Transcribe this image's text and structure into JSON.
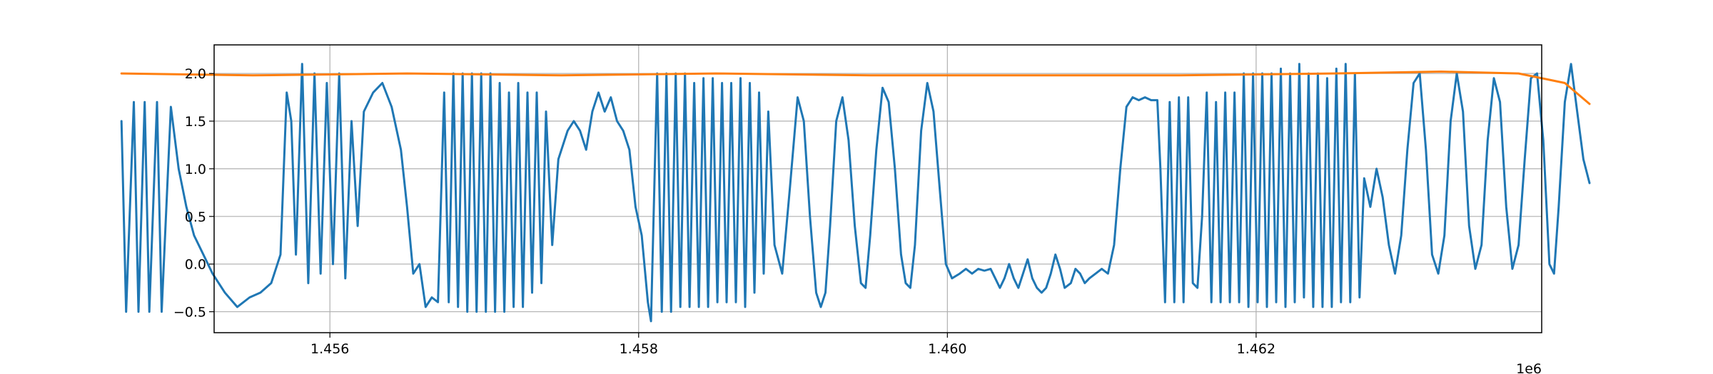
{
  "chart_data": {
    "type": "line",
    "title": "",
    "xlabel": "",
    "ylabel": "",
    "x_offset_label": "1e6",
    "xlim": [
      1.45525,
      1.46385
    ],
    "ylim": [
      -0.72,
      2.3
    ],
    "x_ticks": [
      1.456,
      1.458,
      1.46,
      1.462
    ],
    "x_tick_labels": [
      "1.456",
      "1.458",
      "1.460",
      "1.462"
    ],
    "y_ticks": [
      -0.5,
      0.0,
      0.5,
      1.0,
      1.5,
      2.0
    ],
    "y_tick_labels": [
      "−0.5",
      "0.0",
      "0.5",
      "1.0",
      "1.5",
      "2.0"
    ],
    "grid": true,
    "series": [
      {
        "color": "#1f77b4",
        "points": [
          [
            1.45465,
            1.5
          ],
          [
            1.45468,
            -0.5
          ],
          [
            1.45473,
            1.7
          ],
          [
            1.45476,
            -0.5
          ],
          [
            1.4548,
            1.7
          ],
          [
            1.45483,
            -0.5
          ],
          [
            1.45488,
            1.7
          ],
          [
            1.45491,
            -0.5
          ],
          [
            1.45497,
            1.65
          ],
          [
            1.45502,
            1.0
          ],
          [
            1.45507,
            0.6
          ],
          [
            1.45512,
            0.3
          ],
          [
            1.45518,
            0.1
          ],
          [
            1.45524,
            -0.1
          ],
          [
            1.45532,
            -0.3
          ],
          [
            1.4554,
            -0.45
          ],
          [
            1.45548,
            -0.35
          ],
          [
            1.45555,
            -0.3
          ],
          [
            1.45562,
            -0.2
          ],
          [
            1.45568,
            0.1
          ],
          [
            1.45572,
            1.8
          ],
          [
            1.45575,
            1.5
          ],
          [
            1.45578,
            0.1
          ],
          [
            1.45582,
            2.1
          ],
          [
            1.45586,
            -0.2
          ],
          [
            1.4559,
            2.0
          ],
          [
            1.45594,
            -0.1
          ],
          [
            1.45598,
            1.9
          ],
          [
            1.45602,
            0.0
          ],
          [
            1.45606,
            2.0
          ],
          [
            1.4561,
            -0.15
          ],
          [
            1.45614,
            1.5
          ],
          [
            1.45618,
            0.4
          ],
          [
            1.45622,
            1.6
          ],
          [
            1.45628,
            1.8
          ],
          [
            1.45634,
            1.9
          ],
          [
            1.4564,
            1.65
          ],
          [
            1.45646,
            1.2
          ],
          [
            1.4565,
            0.6
          ],
          [
            1.45654,
            -0.1
          ],
          [
            1.45658,
            0.0
          ],
          [
            1.45662,
            -0.45
          ],
          [
            1.45666,
            -0.35
          ],
          [
            1.4567,
            -0.4
          ],
          [
            1.45674,
            1.8
          ],
          [
            1.45677,
            -0.4
          ],
          [
            1.4568,
            2.0
          ],
          [
            1.45683,
            -0.45
          ],
          [
            1.45686,
            2.0
          ],
          [
            1.45689,
            -0.5
          ],
          [
            1.45692,
            2.0
          ],
          [
            1.45695,
            -0.5
          ],
          [
            1.45698,
            2.0
          ],
          [
            1.45701,
            -0.5
          ],
          [
            1.45704,
            2.0
          ],
          [
            1.45707,
            -0.5
          ],
          [
            1.4571,
            1.9
          ],
          [
            1.45713,
            -0.5
          ],
          [
            1.45716,
            1.8
          ],
          [
            1.45719,
            -0.45
          ],
          [
            1.45722,
            1.9
          ],
          [
            1.45725,
            -0.45
          ],
          [
            1.45728,
            1.8
          ],
          [
            1.45731,
            -0.3
          ],
          [
            1.45734,
            1.8
          ],
          [
            1.45737,
            -0.2
          ],
          [
            1.4574,
            1.6
          ],
          [
            1.45744,
            0.2
          ],
          [
            1.45748,
            1.1
          ],
          [
            1.45754,
            1.4
          ],
          [
            1.45758,
            1.5
          ],
          [
            1.45762,
            1.4
          ],
          [
            1.45766,
            1.2
          ],
          [
            1.4577,
            1.6
          ],
          [
            1.45774,
            1.8
          ],
          [
            1.45778,
            1.6
          ],
          [
            1.45782,
            1.75
          ],
          [
            1.45786,
            1.5
          ],
          [
            1.4579,
            1.4
          ],
          [
            1.45794,
            1.2
          ],
          [
            1.45798,
            0.6
          ],
          [
            1.45802,
            0.3
          ],
          [
            1.45806,
            -0.4
          ],
          [
            1.45808,
            -0.6
          ],
          [
            1.45812,
            2.0
          ],
          [
            1.45815,
            -0.5
          ],
          [
            1.45818,
            2.0
          ],
          [
            1.45821,
            -0.5
          ],
          [
            1.45824,
            2.0
          ],
          [
            1.45827,
            -0.45
          ],
          [
            1.4583,
            2.0
          ],
          [
            1.45833,
            -0.45
          ],
          [
            1.45836,
            1.9
          ],
          [
            1.45839,
            -0.45
          ],
          [
            1.45842,
            1.95
          ],
          [
            1.45845,
            -0.45
          ],
          [
            1.45848,
            1.95
          ],
          [
            1.45851,
            -0.4
          ],
          [
            1.45854,
            1.9
          ],
          [
            1.45857,
            -0.4
          ],
          [
            1.4586,
            1.9
          ],
          [
            1.45863,
            -0.4
          ],
          [
            1.45866,
            1.95
          ],
          [
            1.45869,
            -0.45
          ],
          [
            1.45872,
            1.9
          ],
          [
            1.45875,
            -0.3
          ],
          [
            1.45878,
            1.8
          ],
          [
            1.45881,
            -0.1
          ],
          [
            1.45884,
            1.6
          ],
          [
            1.45888,
            0.2
          ],
          [
            1.45893,
            -0.1
          ],
          [
            1.45898,
            0.8
          ],
          [
            1.45903,
            1.75
          ],
          [
            1.45907,
            1.5
          ],
          [
            1.45911,
            0.5
          ],
          [
            1.45915,
            -0.3
          ],
          [
            1.45918,
            -0.45
          ],
          [
            1.45921,
            -0.3
          ],
          [
            1.45924,
            0.4
          ],
          [
            1.45928,
            1.5
          ],
          [
            1.45932,
            1.75
          ],
          [
            1.45936,
            1.3
          ],
          [
            1.4594,
            0.4
          ],
          [
            1.45944,
            -0.2
          ],
          [
            1.45947,
            -0.25
          ],
          [
            1.4595,
            0.3
          ],
          [
            1.45954,
            1.2
          ],
          [
            1.45958,
            1.85
          ],
          [
            1.45962,
            1.7
          ],
          [
            1.45966,
            1.0
          ],
          [
            1.4597,
            0.1
          ],
          [
            1.45973,
            -0.2
          ],
          [
            1.45976,
            -0.25
          ],
          [
            1.45979,
            0.2
          ],
          [
            1.45983,
            1.4
          ],
          [
            1.45987,
            1.9
          ],
          [
            1.45991,
            1.6
          ],
          [
            1.45995,
            0.8
          ],
          [
            1.45999,
            0.0
          ],
          [
            1.46003,
            -0.15
          ],
          [
            1.46008,
            -0.1
          ],
          [
            1.46012,
            -0.05
          ],
          [
            1.46016,
            -0.1
          ],
          [
            1.4602,
            -0.05
          ],
          [
            1.46024,
            -0.07
          ],
          [
            1.46028,
            -0.05
          ],
          [
            1.46031,
            -0.15
          ],
          [
            1.46034,
            -0.25
          ],
          [
            1.46037,
            -0.15
          ],
          [
            1.4604,
            0.0
          ],
          [
            1.46043,
            -0.15
          ],
          [
            1.46046,
            -0.25
          ],
          [
            1.46049,
            -0.1
          ],
          [
            1.46052,
            0.05
          ],
          [
            1.46055,
            -0.15
          ],
          [
            1.46058,
            -0.25
          ],
          [
            1.46061,
            -0.3
          ],
          [
            1.46064,
            -0.25
          ],
          [
            1.46067,
            -0.1
          ],
          [
            1.4607,
            0.1
          ],
          [
            1.46073,
            -0.05
          ],
          [
            1.46076,
            -0.25
          ],
          [
            1.4608,
            -0.2
          ],
          [
            1.46083,
            -0.05
          ],
          [
            1.46086,
            -0.1
          ],
          [
            1.46089,
            -0.2
          ],
          [
            1.46092,
            -0.15
          ],
          [
            1.46096,
            -0.1
          ],
          [
            1.461,
            -0.05
          ],
          [
            1.46104,
            -0.1
          ],
          [
            1.46108,
            0.2
          ],
          [
            1.46112,
            1.0
          ],
          [
            1.46116,
            1.65
          ],
          [
            1.4612,
            1.75
          ],
          [
            1.46124,
            1.72
          ],
          [
            1.46128,
            1.75
          ],
          [
            1.46132,
            1.72
          ],
          [
            1.46136,
            1.72
          ],
          [
            1.46138,
            1.0
          ],
          [
            1.46141,
            -0.4
          ],
          [
            1.46144,
            1.7
          ],
          [
            1.46147,
            -0.4
          ],
          [
            1.4615,
            1.75
          ],
          [
            1.46153,
            -0.4
          ],
          [
            1.46156,
            1.75
          ],
          [
            1.46159,
            -0.2
          ],
          [
            1.46162,
            -0.25
          ],
          [
            1.46165,
            0.5
          ],
          [
            1.46168,
            1.8
          ],
          [
            1.46171,
            -0.4
          ],
          [
            1.46174,
            1.7
          ],
          [
            1.46177,
            -0.4
          ],
          [
            1.4618,
            1.8
          ],
          [
            1.46183,
            -0.4
          ],
          [
            1.46186,
            1.8
          ],
          [
            1.46189,
            -0.4
          ],
          [
            1.46192,
            2.0
          ],
          [
            1.46195,
            -0.45
          ],
          [
            1.46198,
            2.0
          ],
          [
            1.46201,
            -0.4
          ],
          [
            1.46204,
            2.0
          ],
          [
            1.46207,
            -0.45
          ],
          [
            1.4621,
            2.0
          ],
          [
            1.46213,
            -0.4
          ],
          [
            1.46216,
            2.05
          ],
          [
            1.46219,
            -0.45
          ],
          [
            1.46222,
            2.0
          ],
          [
            1.46225,
            -0.4
          ],
          [
            1.46228,
            2.1
          ],
          [
            1.46231,
            -0.35
          ],
          [
            1.46234,
            2.0
          ],
          [
            1.46237,
            -0.45
          ],
          [
            1.4624,
            2.0
          ],
          [
            1.46243,
            -0.45
          ],
          [
            1.46246,
            1.95
          ],
          [
            1.46249,
            -0.45
          ],
          [
            1.46252,
            2.05
          ],
          [
            1.46255,
            -0.4
          ],
          [
            1.46258,
            2.1
          ],
          [
            1.46261,
            -0.4
          ],
          [
            1.46264,
            2.0
          ],
          [
            1.46267,
            -0.35
          ],
          [
            1.4627,
            0.9
          ],
          [
            1.46274,
            0.6
          ],
          [
            1.46278,
            1.0
          ],
          [
            1.46282,
            0.7
          ],
          [
            1.46286,
            0.2
          ],
          [
            1.4629,
            -0.1
          ],
          [
            1.46294,
            0.3
          ],
          [
            1.46298,
            1.2
          ],
          [
            1.46302,
            1.9
          ],
          [
            1.46306,
            2.0
          ],
          [
            1.4631,
            1.2
          ],
          [
            1.46314,
            0.1
          ],
          [
            1.46318,
            -0.1
          ],
          [
            1.46322,
            0.3
          ],
          [
            1.46326,
            1.5
          ],
          [
            1.4633,
            2.0
          ],
          [
            1.46334,
            1.6
          ],
          [
            1.46338,
            0.4
          ],
          [
            1.46342,
            -0.05
          ],
          [
            1.46346,
            0.2
          ],
          [
            1.4635,
            1.3
          ],
          [
            1.46354,
            1.95
          ],
          [
            1.46358,
            1.7
          ],
          [
            1.46362,
            0.6
          ],
          [
            1.46366,
            -0.05
          ],
          [
            1.4637,
            0.2
          ],
          [
            1.46374,
            1.1
          ],
          [
            1.46378,
            1.95
          ],
          [
            1.46382,
            2.0
          ],
          [
            1.46386,
            1.3
          ],
          [
            1.4639,
            0.0
          ],
          [
            1.46393,
            -0.1
          ],
          [
            1.46396,
            0.6
          ],
          [
            1.464,
            1.7
          ],
          [
            1.46404,
            2.1
          ],
          [
            1.46408,
            1.6
          ],
          [
            1.46412,
            1.1
          ],
          [
            1.46416,
            0.85
          ]
        ]
      },
      {
        "color": "#ff7f0e",
        "points": [
          [
            1.45465,
            2.0
          ],
          [
            1.4555,
            1.98
          ],
          [
            1.4565,
            2.0
          ],
          [
            1.4575,
            1.98
          ],
          [
            1.4585,
            2.0
          ],
          [
            1.4595,
            1.98
          ],
          [
            1.4605,
            1.98
          ],
          [
            1.4615,
            1.98
          ],
          [
            1.4625,
            2.0
          ],
          [
            1.4632,
            2.02
          ],
          [
            1.4637,
            2.0
          ],
          [
            1.464,
            1.9
          ],
          [
            1.46416,
            1.68
          ]
        ]
      }
    ]
  }
}
